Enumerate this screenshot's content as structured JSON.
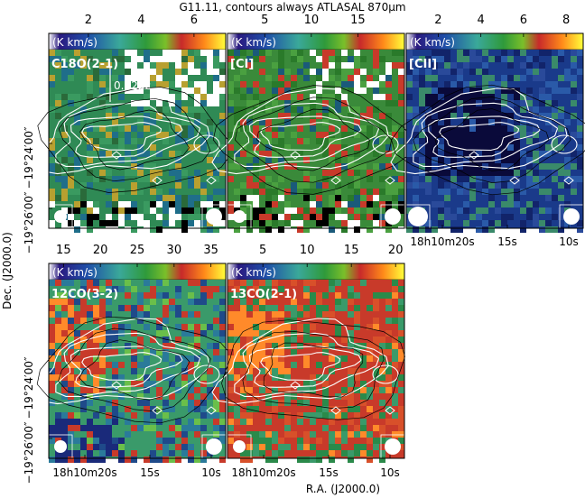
{
  "figure_title": "G11.11, contours always ATLASAL 870μm",
  "ra_axis_label": "R.A. (J2000.0)",
  "dec_axis_label": "Dec. (J2000.0)",
  "chart_data": [
    {
      "type": "heatmap",
      "panel_label": "C18O(2-1)",
      "colorbar_unit": "(K km/s)",
      "colorbar_ticks": [
        "2",
        "4",
        "6"
      ],
      "colorbar_range": [
        0.5,
        7.2
      ],
      "scale_bar_label": "0.52pc",
      "dec_tick_labels": [
        "−19°24′00″",
        "−19°26′00″"
      ],
      "ra_tick_labels": []
    },
    {
      "type": "heatmap",
      "panel_label": "[CI]",
      "colorbar_unit": "(K km/s)",
      "colorbar_ticks": [
        "5",
        "10",
        "15"
      ],
      "colorbar_range": [
        1,
        20
      ],
      "dec_tick_labels": [],
      "ra_tick_labels": []
    },
    {
      "type": "heatmap",
      "panel_label": "[CII]",
      "colorbar_unit": "(K km/s)",
      "colorbar_ticks": [
        "2",
        "4",
        "6",
        "8"
      ],
      "colorbar_range": [
        0.5,
        8.8
      ],
      "dec_tick_labels": [],
      "ra_tick_labels": [
        "18h10m20s",
        "15s",
        "10s"
      ]
    },
    {
      "type": "heatmap",
      "panel_label": "12CO(3-2)",
      "colorbar_unit": "(K km/s)",
      "colorbar_ticks": [
        "15",
        "20",
        "25",
        "30",
        "35"
      ],
      "colorbar_range": [
        13,
        37
      ],
      "dec_tick_labels": [
        "−19°24′00″",
        "−19°26′00″"
      ],
      "ra_tick_labels": [
        "18h10m20s",
        "15s",
        "10s"
      ]
    },
    {
      "type": "heatmap",
      "panel_label": "13CO(2-1)",
      "colorbar_unit": "(K km/s)",
      "colorbar_ticks": [
        "5",
        "10",
        "15",
        "20"
      ],
      "colorbar_range": [
        1,
        21
      ],
      "dec_tick_labels": [],
      "ra_tick_labels": [
        "18h10m20s",
        "15s",
        "10s"
      ]
    }
  ],
  "colors": {
    "colormap": [
      "#0a1a6e",
      "#1f4fa8",
      "#3f9a80",
      "#2f9a4a",
      "#6bbf3a",
      "#c83232",
      "#ff8a1a",
      "#ffff2a"
    ],
    "contour_white": "#ffffff",
    "contour_black": "#000000"
  }
}
